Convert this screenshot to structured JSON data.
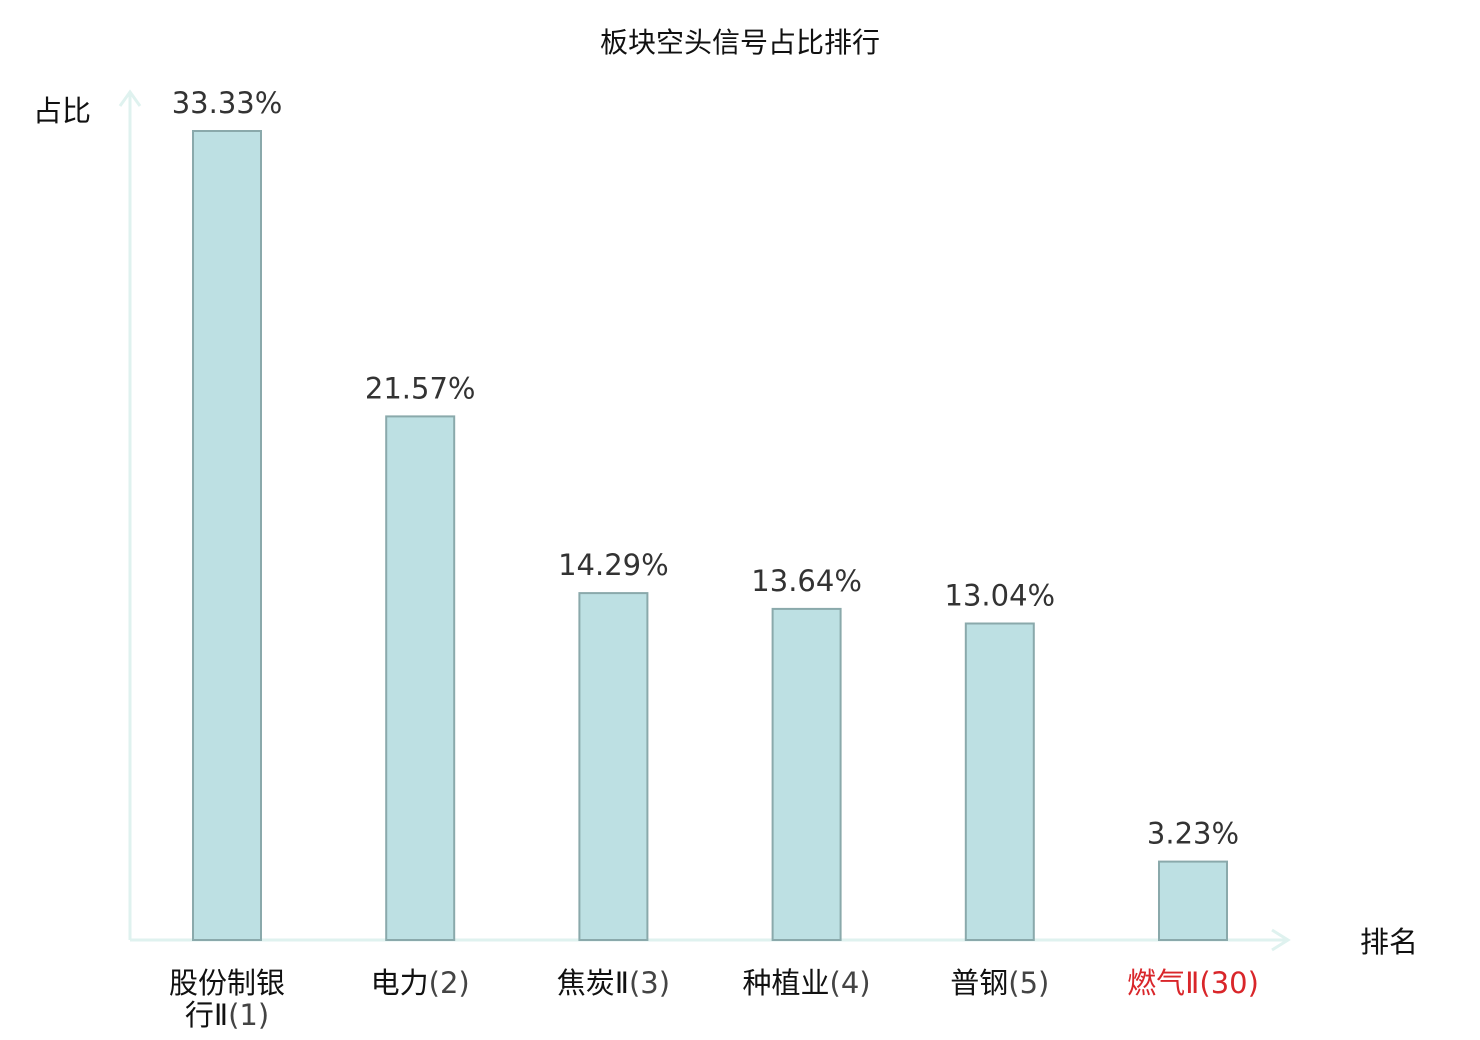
{
  "chart_data": {
    "type": "bar",
    "title": "板块空头信号占比排行",
    "ylabel": "占比",
    "xlabel": "排名",
    "ylim": [
      0,
      35
    ],
    "grid": false,
    "categories": [
      "股份制银行Ⅱ(1)",
      "电力(2)",
      "焦炭Ⅱ(3)",
      "种植业(4)",
      "普钢(5)",
      "燃气Ⅱ(30)"
    ],
    "category_names": [
      "股份制银行Ⅱ",
      "电力",
      "焦炭Ⅱ",
      "种植业",
      "普钢",
      "燃气Ⅱ"
    ],
    "category_ranks": [
      "(1)",
      "(2)",
      "(3)",
      "(4)",
      "(5)",
      "(30)"
    ],
    "category_name_lines": [
      [
        "股份制银",
        "行Ⅱ"
      ],
      [
        "电力"
      ],
      [
        "焦炭Ⅱ"
      ],
      [
        "种植业"
      ],
      [
        "普钢"
      ],
      [
        "燃气Ⅱ"
      ]
    ],
    "values": [
      33.33,
      21.57,
      14.29,
      13.64,
      13.04,
      3.23
    ],
    "value_labels": [
      "33.33%",
      "21.57%",
      "14.29%",
      "13.64%",
      "13.04%",
      "3.23%"
    ],
    "highlighted_index": 5,
    "colors": {
      "bar_fill": "#bde0e3",
      "bar_stroke": "#8aa9ab",
      "axis": "#dff2ef",
      "highlight_text": "#d9262a"
    }
  }
}
